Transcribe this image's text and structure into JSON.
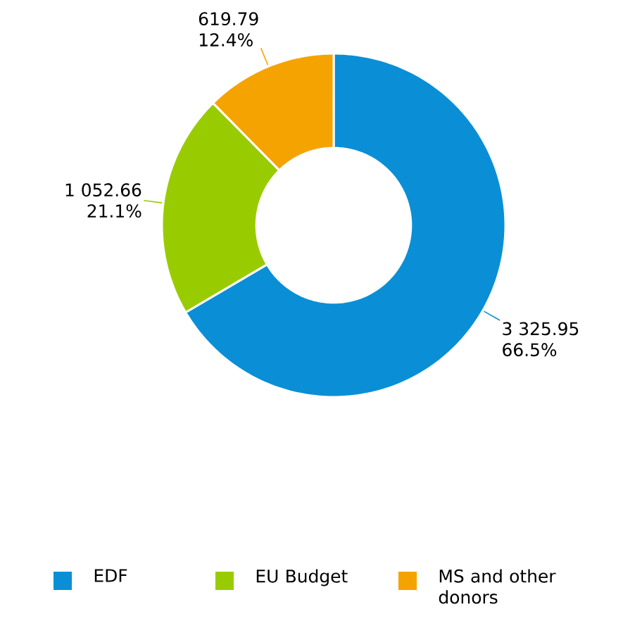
{
  "chart_data": {
    "type": "donut",
    "categories": [
      "EDF",
      "EU Budget",
      "MS and other donors"
    ],
    "values": [
      3325.95,
      1052.66,
      619.79
    ],
    "colors": [
      "#0a8fd6",
      "#99cc00",
      "#f5a300"
    ],
    "value_labels": [
      "3 325.95",
      "1 052.66",
      "619.79"
    ],
    "annotations": [
      "66.5%",
      "21.1%",
      "12.4%"
    ],
    "legend": "bottom"
  }
}
